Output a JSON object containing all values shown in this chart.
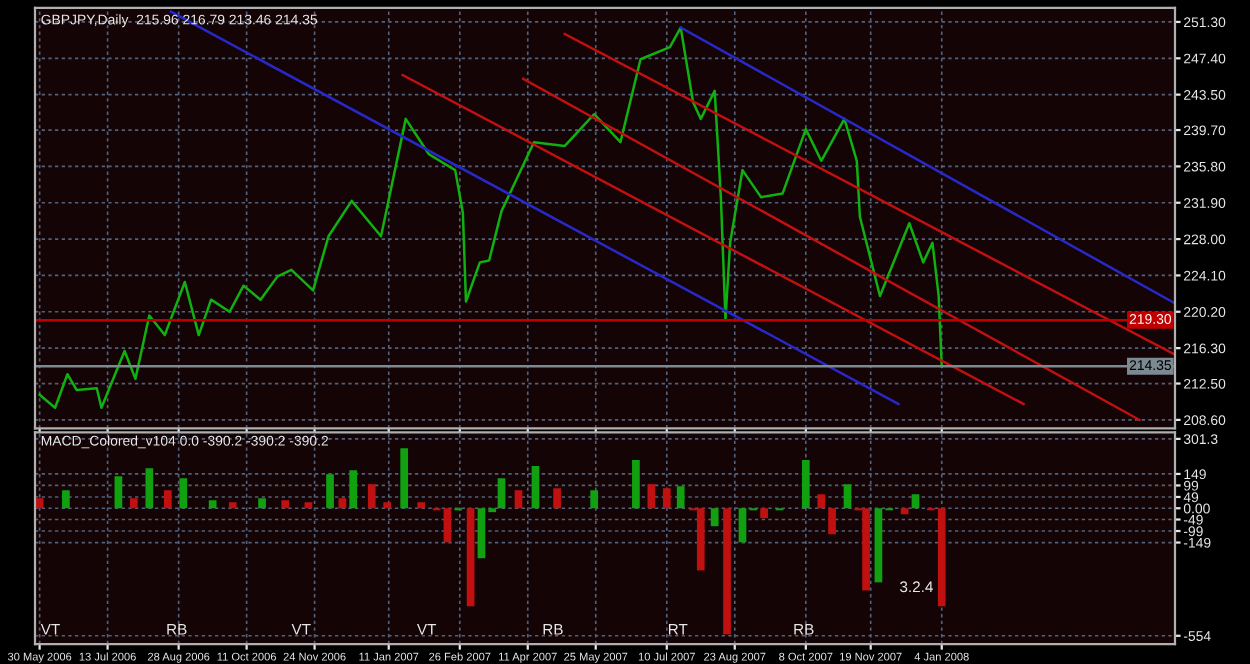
{
  "chart_data": [
    {
      "type": "line",
      "title": "GBPJPY,Daily  215.96 216.79 213.46 214.35",
      "tick_labels": "y",
      "grid": true,
      "legend": false,
      "xlim": [
        "2006-05-27",
        "2008-06-03"
      ],
      "ylim": [
        207.7,
        252.8
      ],
      "yticks": [
        {
          "value": 251.3,
          "label": "251.30"
        },
        {
          "value": 247.4,
          "label": "247.40"
        },
        {
          "value": 243.5,
          "label": "243.50"
        },
        {
          "value": 239.7,
          "label": "239.70"
        },
        {
          "value": 235.8,
          "label": "235.80"
        },
        {
          "value": 231.9,
          "label": "231.90"
        },
        {
          "value": 228.0,
          "label": "228.00"
        },
        {
          "value": 224.1,
          "label": "224.10"
        },
        {
          "value": 220.2,
          "label": "220.20"
        },
        {
          "value": 216.3,
          "label": "216.30"
        },
        {
          "value": 212.5,
          "label": "212.50"
        },
        {
          "value": 208.6,
          "label": "208.60"
        }
      ],
      "xticks": [
        {
          "value": "2006-05-30",
          "label": null
        },
        {
          "value": "2006-07-13",
          "label": null
        },
        {
          "value": "2006-08-28",
          "label": null
        },
        {
          "value": "2006-10-11",
          "label": null
        },
        {
          "value": "2006-11-24",
          "label": null
        },
        {
          "value": "2007-01-11",
          "label": null
        },
        {
          "value": "2007-02-26",
          "label": null
        },
        {
          "value": "2007-04-11",
          "label": null
        },
        {
          "value": "2007-05-25",
          "label": null
        },
        {
          "value": "2007-07-10",
          "label": null
        },
        {
          "value": "2007-08-23",
          "label": null
        },
        {
          "value": "2007-10-08",
          "label": null
        },
        {
          "value": "2007-11-19",
          "label": null
        },
        {
          "value": "2008-01-04",
          "label": null
        }
      ],
      "series": [
        {
          "color": "#10b010",
          "x": [
            "2006-05-30",
            "2006-06-09",
            "2006-06-17",
            "2006-06-23",
            "2006-07-06",
            "2006-07-09",
            "2006-07-24",
            "2006-07-31",
            "2006-08-09",
            "2006-08-19",
            "2006-09-01",
            "2006-09-10",
            "2006-09-18",
            "2006-09-30",
            "2006-10-09",
            "2006-10-20",
            "2006-10-31",
            "2006-11-09",
            "2006-11-23",
            "2006-12-03",
            "2006-12-18",
            "2007-01-06",
            "2007-01-22",
            "2007-02-06",
            "2007-02-23",
            "2007-02-28",
            "2007-03-02",
            "2007-03-11",
            "2007-03-17",
            "2007-03-25",
            "2007-04-15",
            "2007-05-05",
            "2007-05-24",
            "2007-06-10",
            "2007-06-23",
            "2007-07-12",
            "2007-07-19",
            "2007-07-27",
            "2007-08-01",
            "2007-08-10",
            "2007-08-14",
            "2007-08-17",
            "2007-08-20",
            "2007-08-28",
            "2007-09-09",
            "2007-09-23",
            "2007-10-08",
            "2007-10-18",
            "2007-11-02",
            "2007-11-10",
            "2007-11-12",
            "2007-11-25",
            "2007-12-14",
            "2007-12-23",
            "2007-12-29",
            "2008-01-02",
            "2008-01-04"
          ],
          "values": [
            211.3,
            209.9,
            213.5,
            211.8,
            212.0,
            209.9,
            216.0,
            213.0,
            219.8,
            217.7,
            223.4,
            217.7,
            221.5,
            220.2,
            223.0,
            221.5,
            224.0,
            224.7,
            222.5,
            228.3,
            232.1,
            228.3,
            240.9,
            237.1,
            235.4,
            230.8,
            221.3,
            225.5,
            225.7,
            231.0,
            238.4,
            238.0,
            241.4,
            238.4,
            247.3,
            248.6,
            250.7,
            242.7,
            240.9,
            243.9,
            232.5,
            219.4,
            227.6,
            235.4,
            232.5,
            232.9,
            239.8,
            236.4,
            240.9,
            236.4,
            230.4,
            221.9,
            229.7,
            225.5,
            227.6,
            221.9,
            214.35
          ]
        },
        {
          "color": "#2828c8",
          "x": [
            "2006-08-23",
            "2007-12-07"
          ],
          "values": [
            252.4,
            210.3
          ]
        },
        {
          "color": "#2828c8",
          "x": [
            "2007-07-19",
            "2008-06-03"
          ],
          "values": [
            250.7,
            221.1
          ]
        },
        {
          "color": "#c01010",
          "x": [
            "2007-01-20",
            "2008-02-26"
          ],
          "values": [
            245.6,
            210.3
          ]
        },
        {
          "color": "#c01010",
          "x": [
            "2007-04-08",
            "2008-05-11"
          ],
          "values": [
            245.2,
            208.6
          ]
        },
        {
          "color": "#c01010",
          "x": [
            "2007-05-05",
            "2008-06-03"
          ],
          "values": [
            250.0,
            215.6
          ]
        }
      ],
      "ref_lines": [
        {
          "axis": "y",
          "value": 219.3,
          "label": "219.30",
          "color": "#c00000"
        },
        {
          "axis": "y",
          "value": 214.35,
          "label": "214.35",
          "color": "#7a8a90"
        }
      ]
    },
    {
      "type": "bar",
      "title": "MACD_Colored_v104 0.0 -390.2 -390.2 -390.2",
      "grid": true,
      "legend": false,
      "xlim": [
        "2006-05-27",
        "2008-06-03"
      ],
      "ylim": [
        -590,
        330
      ],
      "yticks": [
        301.3,
        149,
        99,
        49,
        {
          "value": 0,
          "label": "0.00"
        },
        -49,
        -99,
        -149,
        -554
      ],
      "xticks": [
        {
          "value": "2006-05-30",
          "label": "30 May 2006"
        },
        {
          "value": "2006-07-13",
          "label": "13 Jul 2006"
        },
        {
          "value": "2006-08-28",
          "label": "28 Aug 2006"
        },
        {
          "value": "2006-10-11",
          "label": "11 Oct 2006"
        },
        {
          "value": "2006-11-24",
          "label": "24 Nov 2006"
        },
        {
          "value": "2007-01-11",
          "label": "11 Jan 2007"
        },
        {
          "value": "2007-02-26",
          "label": "26 Feb 2007"
        },
        {
          "value": "2007-04-11",
          "label": "11 Apr 2007"
        },
        {
          "value": "2007-05-25",
          "label": "25 May 2007"
        },
        {
          "value": "2007-07-10",
          "label": "10 Jul 2007"
        },
        {
          "value": "2007-08-23",
          "label": "23 Aug 2007"
        },
        {
          "value": "2007-10-08",
          "label": "8 Oct 2007"
        },
        {
          "value": "2007-11-19",
          "label": "19 Nov 2007"
        },
        {
          "value": "2008-01-04",
          "label": "4 Jan 2008"
        }
      ],
      "series": [
        {
          "x": [
            "2006-05-30",
            "2006-06-16",
            "2006-07-01",
            "2006-07-20",
            "2006-07-30",
            "2006-08-09",
            "2006-08-21",
            "2006-08-31",
            "2006-09-10",
            "2006-09-19",
            "2006-10-02",
            "2006-10-21",
            "2006-11-05",
            "2006-11-20",
            "2006-12-04",
            "2006-12-12",
            "2006-12-19",
            "2006-12-31",
            "2007-01-10",
            "2007-01-21",
            "2007-02-01",
            "2007-02-11",
            "2007-02-18",
            "2007-02-25",
            "2007-03-05",
            "2007-03-12",
            "2007-03-19",
            "2007-03-25",
            "2007-04-05",
            "2007-04-16",
            "2007-04-30",
            "2007-05-11",
            "2007-05-24",
            "2007-06-05",
            "2007-06-20",
            "2007-06-30",
            "2007-07-10",
            "2007-07-19",
            "2007-07-27",
            "2007-08-01",
            "2007-08-10",
            "2007-08-18",
            "2007-08-28",
            "2007-09-04",
            "2007-09-11",
            "2007-09-21",
            "2007-09-28",
            "2007-10-08",
            "2007-10-18",
            "2007-10-25",
            "2007-11-04",
            "2007-11-11",
            "2007-11-16",
            "2007-11-24",
            "2007-12-01",
            "2007-12-11",
            "2007-12-18",
            "2007-12-28",
            "2008-01-04"
          ],
          "values": [
            43,
            78,
            0,
            139,
            43,
            174,
            78,
            130,
            0,
            35,
            26,
            43,
            35,
            26,
            148,
            43,
            165,
            104,
            26,
            261,
            26,
            -9,
            -148,
            -9,
            -426,
            -217,
            -17,
            130,
            78,
            183,
            87,
            0,
            78,
            0,
            209,
            104,
            87,
            96,
            -9,
            -270,
            -78,
            -548,
            -148,
            -9,
            -43,
            -9,
            0,
            209,
            61,
            -113,
            104,
            -9,
            -357,
            -322,
            -9,
            -26,
            61,
            -9,
            -426
          ],
          "colors": [
            "#c01010",
            "#10a010",
            "#c01010",
            "#10a010",
            "#c01010",
            "#10a010",
            "#c01010",
            "#10a010",
            "#c01010",
            "#10a010",
            "#c01010",
            "#10a010",
            "#c01010",
            "#c01010",
            "#10a010",
            "#c01010",
            "#10a010",
            "#c01010",
            "#c01010",
            "#10a010",
            "#c01010",
            "#c01010",
            "#c01010",
            "#10a010",
            "#c01010",
            "#10a010",
            "#10a010",
            "#10a010",
            "#c01010",
            "#10a010",
            "#c01010",
            "#c01010",
            "#10a010",
            "#c01010",
            "#10a010",
            "#c01010",
            "#c01010",
            "#10a010",
            "#c01010",
            "#c01010",
            "#10a010",
            "#c01010",
            "#10a010",
            "#10a010",
            "#c01010",
            "#10a010",
            "#10a010",
            "#10a010",
            "#c01010",
            "#c01010",
            "#10a010",
            "#c01010",
            "#c01010",
            "#10a010",
            "#10a010",
            "#c01010",
            "#10a010",
            "#c01010",
            "#c01010"
          ]
        }
      ],
      "annotations": [
        "VT",
        "RB",
        "VT",
        "VT",
        "RB",
        "RT",
        "RB",
        {
          "text": "3.2.4",
          "x": "2008-01-04",
          "y": -426
        }
      ]
    }
  ]
}
